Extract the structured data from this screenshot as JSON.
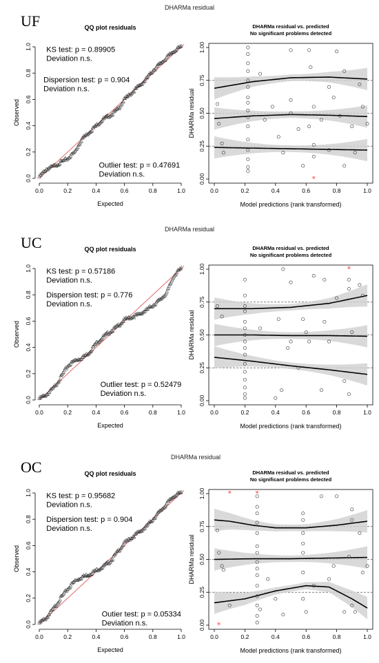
{
  "colors": {
    "reference_line": "#e06a6a",
    "outlier": "#ff3b3b",
    "band": "#cfcfcf",
    "points": "#333333"
  },
  "chart_data": [
    {
      "panel_label": "UF",
      "super_title": "DHARMa residual",
      "qq": {
        "type": "scatter",
        "title": "QQ plot residuals",
        "xlabel": "Expected",
        "ylabel": "Observed",
        "xlim": [
          0,
          1
        ],
        "ylim": [
          0,
          1
        ],
        "x_ticks": [
          "0.0",
          "0.2",
          "0.4",
          "0.6",
          "0.8",
          "1.0"
        ],
        "y_ticks": [
          "0.0",
          "0.2",
          "0.4",
          "0.6",
          "0.8",
          "1.0"
        ],
        "curve": {
          "x": [
            0.0,
            0.05,
            0.1,
            0.15,
            0.2,
            0.25,
            0.3,
            0.35,
            0.4,
            0.45,
            0.5,
            0.55,
            0.6,
            0.65,
            0.7,
            0.75,
            0.8,
            0.85,
            0.9,
            0.95,
            1.0
          ],
          "y": [
            0.01,
            0.07,
            0.09,
            0.12,
            0.15,
            0.2,
            0.3,
            0.35,
            0.4,
            0.45,
            0.48,
            0.52,
            0.6,
            0.65,
            0.7,
            0.75,
            0.82,
            0.87,
            0.92,
            0.97,
            1.0
          ]
        },
        "tests": [
          {
            "text": "KS test: p = 0.89905",
            "note": "Deviation n.s.",
            "x": 0.05,
            "y": 0.96
          },
          {
            "text": "Dispersion test: p = 0.904",
            "note": "Deviation n.s.",
            "x": 0.03,
            "y": 0.73
          },
          {
            "text": "Outlier test: p = 0.47691",
            "note": "Deviation n.s.",
            "x": 0.42,
            "y": 0.08
          }
        ]
      },
      "resid": {
        "type": "scatter",
        "title": "DHARMa residual vs. predicted",
        "subtitle": "No significant problems detected",
        "xlabel": "Model predictions (rank transformed)",
        "ylabel": "DHARMa residual",
        "xlim": [
          0,
          1
        ],
        "ylim": [
          0,
          1
        ],
        "x_ticks": [
          "0.0",
          "0.2",
          "0.4",
          "0.6",
          "0.8",
          "1.0"
        ],
        "y_ticks": [
          "0.00",
          "0.25",
          "0.50",
          "0.75",
          "1.00"
        ],
        "points": {
          "x": [
            0.02,
            0.03,
            0.05,
            0.06,
            0.22,
            0.22,
            0.22,
            0.22,
            0.22,
            0.22,
            0.22,
            0.22,
            0.22,
            0.22,
            0.22,
            0.22,
            0.22,
            0.22,
            0.22,
            0.22,
            0.3,
            0.33,
            0.38,
            0.42,
            0.45,
            0.5,
            0.5,
            0.5,
            0.55,
            0.58,
            0.62,
            0.62,
            0.63,
            0.65,
            0.65,
            0.65,
            0.7,
            0.75,
            0.75,
            0.78,
            0.8,
            0.82,
            0.85,
            0.85,
            0.9,
            0.92,
            0.95,
            0.97,
            1.0
          ],
          "y": [
            0.57,
            0.42,
            0.27,
            0.2,
            1.0,
            0.95,
            0.88,
            0.82,
            0.75,
            0.7,
            0.62,
            0.58,
            0.52,
            0.47,
            0.4,
            0.3,
            0.22,
            0.15,
            0.09,
            0.06,
            0.8,
            0.45,
            0.55,
            0.32,
            0.2,
            0.98,
            0.6,
            0.5,
            0.38,
            0.1,
            0.4,
            0.98,
            0.85,
            0.55,
            0.26,
            0.17,
            0.45,
            0.7,
            0.22,
            0.62,
            0.97,
            0.48,
            0.1,
            0.82,
            0.4,
            0.2,
            0.72,
            0.55,
            0.42
          ]
        },
        "outliers": {
          "x": [
            0.65
          ],
          "y": [
            0.0
          ]
        },
        "quantile_fits": [
          {
            "q": 0.25,
            "x": [
              0.0,
              0.25,
              0.5,
              0.75,
              1.0
            ],
            "y": [
              0.24,
              0.235,
              0.23,
              0.225,
              0.22
            ]
          },
          {
            "q": 0.5,
            "x": [
              0.0,
              0.25,
              0.5,
              0.75,
              1.0
            ],
            "y": [
              0.46,
              0.48,
              0.49,
              0.485,
              0.475
            ]
          },
          {
            "q": 0.75,
            "x": [
              0.0,
              0.25,
              0.5,
              0.75,
              1.0
            ],
            "y": [
              0.69,
              0.74,
              0.77,
              0.775,
              0.76
            ]
          }
        ]
      }
    },
    {
      "panel_label": "UC",
      "super_title": "DHARMa residual",
      "qq": {
        "type": "scatter",
        "title": "QQ plot residuals",
        "xlabel": "Expected",
        "ylabel": "Observed",
        "xlim": [
          0,
          1
        ],
        "ylim": [
          0,
          1
        ],
        "x_ticks": [
          "0.0",
          "0.2",
          "0.4",
          "0.6",
          "0.8",
          "1.0"
        ],
        "y_ticks": [
          "0.0",
          "0.2",
          "0.4",
          "0.6",
          "0.8",
          "1.0"
        ],
        "curve": {
          "x": [
            0.0,
            0.05,
            0.1,
            0.15,
            0.2,
            0.25,
            0.3,
            0.35,
            0.4,
            0.45,
            0.5,
            0.55,
            0.6,
            0.65,
            0.7,
            0.75,
            0.8,
            0.85,
            0.9,
            0.95,
            1.0
          ],
          "y": [
            0.01,
            0.04,
            0.09,
            0.17,
            0.26,
            0.3,
            0.32,
            0.36,
            0.43,
            0.48,
            0.52,
            0.56,
            0.61,
            0.63,
            0.65,
            0.68,
            0.72,
            0.76,
            0.82,
            0.95,
            1.0
          ]
        },
        "tests": [
          {
            "text": "KS test: p = 0.57186",
            "note": "Deviation n.s.",
            "x": 0.05,
            "y": 0.96
          },
          {
            "text": "Dispersion test: p = 0.776",
            "note": "Deviation n.s.",
            "x": 0.05,
            "y": 0.78
          },
          {
            "text": "Outlier test: p = 0.52479",
            "note": "Deviation n.s.",
            "x": 0.43,
            "y": 0.1
          }
        ]
      },
      "resid": {
        "type": "scatter",
        "title": "DHARMa residual vs. predicted",
        "subtitle": "No significant problems detected",
        "xlabel": "Model predictions (rank transformed)",
        "ylabel": "DHARMa residual",
        "xlim": [
          0,
          1
        ],
        "ylim": [
          0,
          1
        ],
        "x_ticks": [
          "0.0",
          "0.2",
          "0.4",
          "0.6",
          "0.8",
          "1.0"
        ],
        "y_ticks": [
          "0.00",
          "0.25",
          "0.50",
          "0.75",
          "1.00"
        ],
        "points": {
          "x": [
            0.02,
            0.05,
            0.2,
            0.2,
            0.2,
            0.2,
            0.2,
            0.2,
            0.2,
            0.2,
            0.2,
            0.2,
            0.2,
            0.2,
            0.2,
            0.2,
            0.2,
            0.2,
            0.3,
            0.4,
            0.42,
            0.44,
            0.45,
            0.48,
            0.5,
            0.5,
            0.55,
            0.58,
            0.6,
            0.62,
            0.65,
            0.7,
            0.72,
            0.72,
            0.75,
            0.8,
            0.85,
            0.88,
            0.88,
            0.88,
            0.9,
            0.95,
            0.97
          ],
          "y": [
            0.72,
            0.64,
            0.92,
            0.8,
            0.72,
            0.68,
            0.6,
            0.55,
            0.5,
            0.45,
            0.4,
            0.35,
            0.28,
            0.22,
            0.16,
            0.1,
            0.05,
            0.02,
            0.55,
            0.02,
            0.62,
            0.08,
            1.0,
            0.4,
            0.9,
            0.45,
            0.25,
            0.62,
            0.52,
            0.45,
            0.95,
            0.08,
            0.92,
            0.6,
            0.45,
            0.78,
            0.15,
            0.92,
            0.85,
            0.05,
            0.52,
            0.88,
            0.8
          ]
        },
        "outliers": {
          "x": [
            0.88
          ],
          "y": [
            1.0
          ]
        },
        "quantile_fits": [
          {
            "q": 0.25,
            "x": [
              0.0,
              0.25,
              0.5,
              0.75,
              1.0
            ],
            "y": [
              0.33,
              0.3,
              0.265,
              0.235,
              0.2
            ]
          },
          {
            "q": 0.5,
            "x": [
              0.0,
              0.25,
              0.5,
              0.75,
              1.0
            ],
            "y": [
              0.5,
              0.5,
              0.495,
              0.495,
              0.49
            ]
          },
          {
            "q": 0.75,
            "x": [
              0.0,
              0.25,
              0.5,
              0.75,
              1.0
            ],
            "y": [
              0.7,
              0.7,
              0.71,
              0.74,
              0.8
            ]
          }
        ]
      }
    },
    {
      "panel_label": "OC",
      "super_title": "DHARMa residual",
      "qq": {
        "type": "scatter",
        "title": "QQ plot residuals",
        "xlabel": "Expected",
        "ylabel": "Observed",
        "xlim": [
          0,
          1
        ],
        "ylim": [
          0,
          1
        ],
        "x_ticks": [
          "0.0",
          "0.2",
          "0.4",
          "0.6",
          "0.8",
          "1.0"
        ],
        "y_ticks": [
          "0.0",
          "0.2",
          "0.4",
          "0.6",
          "0.8",
          "1.0"
        ],
        "curve": {
          "x": [
            0.0,
            0.05,
            0.1,
            0.15,
            0.2,
            0.25,
            0.3,
            0.35,
            0.4,
            0.45,
            0.5,
            0.55,
            0.6,
            0.65,
            0.7,
            0.75,
            0.8,
            0.85,
            0.9,
            0.95,
            1.0
          ],
          "y": [
            0.01,
            0.05,
            0.12,
            0.2,
            0.27,
            0.33,
            0.36,
            0.38,
            0.41,
            0.44,
            0.48,
            0.55,
            0.62,
            0.66,
            0.7,
            0.74,
            0.8,
            0.86,
            0.92,
            0.98,
            1.0
          ]
        },
        "tests": [
          {
            "text": "KS test: p = 0.95682",
            "note": "Deviation n.s.",
            "x": 0.05,
            "y": 0.96
          },
          {
            "text": "Dispersion test: p = 0.904",
            "note": "Deviation n.s.",
            "x": 0.05,
            "y": 0.78
          },
          {
            "text": "Outier test: p = 0.05334",
            "note": "Deviation n.s.",
            "x": 0.44,
            "y": 0.06
          }
        ]
      },
      "resid": {
        "type": "scatter",
        "title": "DHARMa residual vs. predicted",
        "subtitle": "No significant problems detected",
        "xlabel": "Model predictions (rank transformed)",
        "ylabel": "DHARMa residual",
        "xlim": [
          0,
          1
        ],
        "ylim": [
          0,
          1
        ],
        "x_ticks": [
          "0.0",
          "0.2",
          "0.4",
          "0.6",
          "0.8",
          "1.0"
        ],
        "y_ticks": [
          "0.00",
          "0.25",
          "0.50",
          "0.75",
          "1.00"
        ],
        "points": {
          "x": [
            0.02,
            0.03,
            0.05,
            0.06,
            0.1,
            0.28,
            0.28,
            0.28,
            0.28,
            0.28,
            0.28,
            0.28,
            0.28,
            0.28,
            0.28,
            0.28,
            0.28,
            0.28,
            0.28,
            0.28,
            0.3,
            0.35,
            0.4,
            0.45,
            0.58,
            0.58,
            0.58,
            0.58,
            0.58,
            0.58,
            0.58,
            0.6,
            0.65,
            0.7,
            0.75,
            0.78,
            0.8,
            0.85,
            0.88,
            0.9,
            0.9,
            0.9,
            0.92,
            0.95,
            0.97,
            1.0
          ],
          "y": [
            0.72,
            0.55,
            0.45,
            0.42,
            0.15,
            0.98,
            0.9,
            0.85,
            0.78,
            0.7,
            0.6,
            0.55,
            0.48,
            0.43,
            0.38,
            0.3,
            0.22,
            0.15,
            0.07,
            0.02,
            0.12,
            0.35,
            0.2,
            0.08,
            0.85,
            0.8,
            0.7,
            0.62,
            0.55,
            0.4,
            0.2,
            0.1,
            0.3,
            0.98,
            0.35,
            0.45,
            0.98,
            0.1,
            0.52,
            0.88,
            0.8,
            0.15,
            0.1,
            0.7,
            0.4,
            0.45
          ]
        },
        "outliers": {
          "x": [
            0.03,
            0.1,
            0.28
          ],
          "y": [
            0.0,
            1.0,
            1.0
          ]
        },
        "quantile_fits": [
          {
            "q": 0.25,
            "x": [
              0.0,
              0.2,
              0.4,
              0.6,
              0.75,
              0.9,
              1.0
            ],
            "y": [
              0.17,
              0.2,
              0.26,
              0.3,
              0.29,
              0.2,
              0.13
            ]
          },
          {
            "q": 0.5,
            "x": [
              0.0,
              0.25,
              0.5,
              0.75,
              1.0
            ],
            "y": [
              0.5,
              0.505,
              0.505,
              0.51,
              0.515
            ]
          },
          {
            "q": 0.75,
            "x": [
              0.0,
              0.1,
              0.25,
              0.4,
              0.6,
              0.8,
              1.0
            ],
            "y": [
              0.8,
              0.79,
              0.76,
              0.74,
              0.74,
              0.76,
              0.79
            ]
          }
        ]
      }
    }
  ]
}
